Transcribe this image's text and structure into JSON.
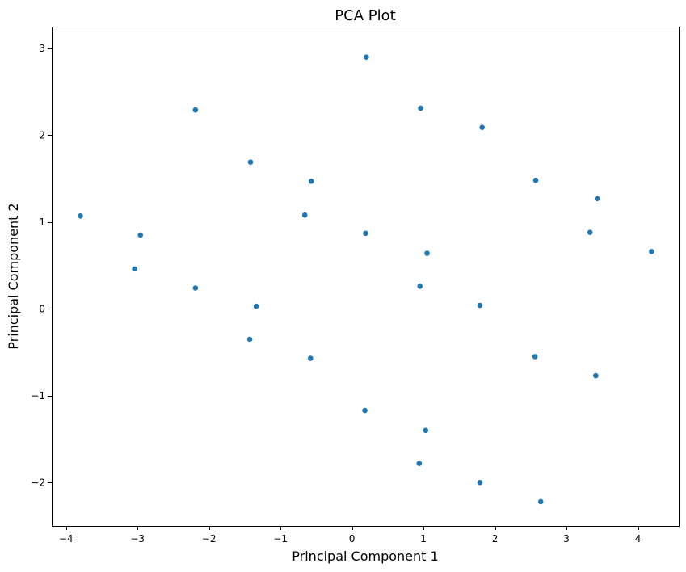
{
  "chart_data": {
    "type": "scatter",
    "title": "PCA Plot",
    "xlabel": "Principal Component 1",
    "ylabel": "Principal Component 2",
    "xlim": [
      -4.2,
      4.57
    ],
    "ylim": [
      -2.5,
      3.25
    ],
    "grid": false,
    "point_color": "#1f77b4",
    "x_ticks": [
      -4,
      -3,
      -2,
      -1,
      0,
      1,
      2,
      3,
      4
    ],
    "y_ticks": [
      -2,
      -1,
      0,
      1,
      2,
      3
    ],
    "x_tick_labels": [
      "−4",
      "−3",
      "−2",
      "−1",
      "0",
      "1",
      "2",
      "3",
      "4"
    ],
    "y_tick_labels": [
      "−2",
      "−1",
      "0",
      "1",
      "2",
      "3"
    ],
    "points": [
      {
        "x": 0.2,
        "y": 2.9
      },
      {
        "x": 0.96,
        "y": 2.31
      },
      {
        "x": -2.19,
        "y": 2.29
      },
      {
        "x": 1.82,
        "y": 2.09
      },
      {
        "x": -1.42,
        "y": 1.69
      },
      {
        "x": 2.57,
        "y": 1.48
      },
      {
        "x": -0.57,
        "y": 1.47
      },
      {
        "x": 3.43,
        "y": 1.27
      },
      {
        "x": -3.8,
        "y": 1.07
      },
      {
        "x": -0.66,
        "y": 1.08
      },
      {
        "x": 3.33,
        "y": 0.88
      },
      {
        "x": 0.19,
        "y": 0.87
      },
      {
        "x": -2.96,
        "y": 0.85
      },
      {
        "x": 4.19,
        "y": 0.66
      },
      {
        "x": 1.05,
        "y": 0.64
      },
      {
        "x": -3.04,
        "y": 0.46
      },
      {
        "x": 0.95,
        "y": 0.26
      },
      {
        "x": -2.19,
        "y": 0.24
      },
      {
        "x": 1.79,
        "y": 0.04
      },
      {
        "x": -1.34,
        "y": 0.03
      },
      {
        "x": -1.43,
        "y": -0.35
      },
      {
        "x": 2.56,
        "y": -0.55
      },
      {
        "x": -0.58,
        "y": -0.57
      },
      {
        "x": 3.41,
        "y": -0.77
      },
      {
        "x": 0.18,
        "y": -1.17
      },
      {
        "x": 1.03,
        "y": -1.4
      },
      {
        "x": 0.94,
        "y": -1.78
      },
      {
        "x": 1.79,
        "y": -2.0
      },
      {
        "x": 2.64,
        "y": -2.22
      }
    ]
  }
}
